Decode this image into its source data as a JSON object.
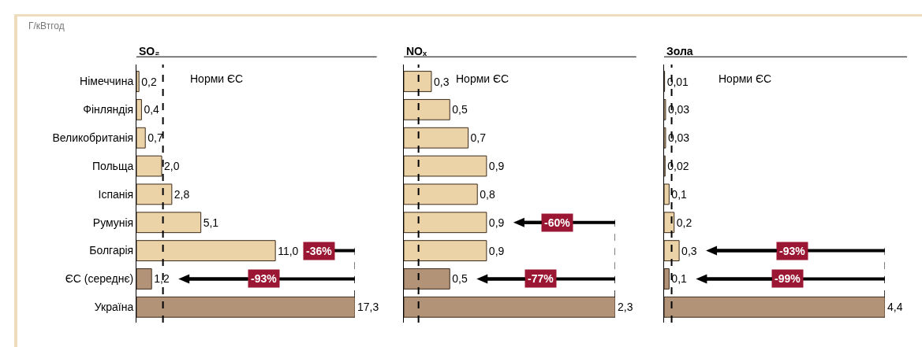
{
  "chart_data": [
    {
      "type": "bar",
      "orientation": "horizontal",
      "title": "SO₂",
      "tick_labels": "y",
      "xlim": [
        0,
        17.3
      ],
      "categories": [
        "Німеччина",
        "Фінляндія",
        "Великобританія",
        "Польща",
        "Іспанія",
        "Румунія",
        "Болгарія",
        "ЄС (середнє)",
        "Україна"
      ],
      "values": [
        0.2,
        0.4,
        0.7,
        2.0,
        2.8,
        5.1,
        11.0,
        1.2,
        17.3
      ],
      "value_labels": [
        "0,2",
        "0,4",
        "0,7",
        "2,0",
        "2,8",
        "5,1",
        "11,0",
        "1,2",
        "17,3"
      ],
      "colors": [
        "#ecd2a7",
        "#ecd2a7",
        "#ecd2a7",
        "#ecd2a7",
        "#ecd2a7",
        "#ecd2a7",
        "#ecd2a7",
        "#b39378",
        "#b39378"
      ],
      "ref_lines": [
        {
          "axis": "x",
          "value": 2.1,
          "label": "Норми ЄС",
          "line_style": "dashed",
          "color": "#000000"
        }
      ],
      "annotations": [
        "Г/кВтгод",
        {
          "text": "-36%",
          "x": 11.0,
          "y": "Болгарія"
        },
        {
          "text": "-93%",
          "x": 1.2,
          "y": "ЄС (середнє)"
        }
      ]
    },
    {
      "type": "bar",
      "orientation": "horizontal",
      "title": "NOₓ",
      "tick_labels": false,
      "xlim": [
        0,
        2.3
      ],
      "categories": [
        "Німеччина",
        "Фінляндія",
        "Великобританія",
        "Польща",
        "Іспанія",
        "Румунія",
        "Болгарія",
        "ЄС (середнє)",
        "Україна"
      ],
      "values": [
        0.3,
        0.5,
        0.7,
        0.9,
        0.8,
        0.9,
        0.9,
        0.5,
        2.3
      ],
      "value_labels": [
        "0,3",
        "0,5",
        "0,7",
        "0,9",
        "0,8",
        "0,9",
        "0,9",
        "0,5",
        "2,3"
      ],
      "colors": [
        "#ecd2a7",
        "#ecd2a7",
        "#ecd2a7",
        "#ecd2a7",
        "#ecd2a7",
        "#ecd2a7",
        "#ecd2a7",
        "#b39378",
        "#b39378"
      ],
      "ref_lines": [
        {
          "axis": "x",
          "value": 0.16,
          "label": "Норми ЄС",
          "line_style": "dashed",
          "color": "#000000"
        }
      ],
      "annotations": [
        {
          "text": "-60%",
          "x": 0.9,
          "y": "Румунія"
        },
        {
          "text": "-77%",
          "x": 0.5,
          "y": "ЄС (середнє)"
        }
      ]
    },
    {
      "type": "bar",
      "orientation": "horizontal",
      "title": "Зола",
      "tick_labels": false,
      "xlim": [
        0,
        4.4
      ],
      "categories": [
        "Німеччина",
        "Фінляндія",
        "Великобританія",
        "Польща",
        "Іспанія",
        "Румунія",
        "Болгарія",
        "ЄС (середнє)",
        "Україна"
      ],
      "values": [
        0.01,
        0.03,
        0.03,
        0.02,
        0.1,
        0.2,
        0.3,
        0.1,
        4.4
      ],
      "value_labels": [
        "0,01",
        "0,03",
        "0,03",
        "0,02",
        "0,1",
        "0,2",
        "0,3",
        "0,1",
        "4,4"
      ],
      "colors": [
        "#ecd2a7",
        "#ecd2a7",
        "#ecd2a7",
        "#ecd2a7",
        "#ecd2a7",
        "#ecd2a7",
        "#ecd2a7",
        "#b39378",
        "#b39378"
      ],
      "ref_lines": [
        {
          "axis": "x",
          "value": 0.15,
          "label": "Норми ЄС",
          "line_style": "dashed",
          "color": "#000000"
        }
      ],
      "annotations": [
        {
          "text": "-93%",
          "x": 0.3,
          "y": "Болгарія"
        },
        {
          "text": "-99%",
          "x": 0.1,
          "y": "ЄС (середнє)"
        }
      ]
    }
  ]
}
